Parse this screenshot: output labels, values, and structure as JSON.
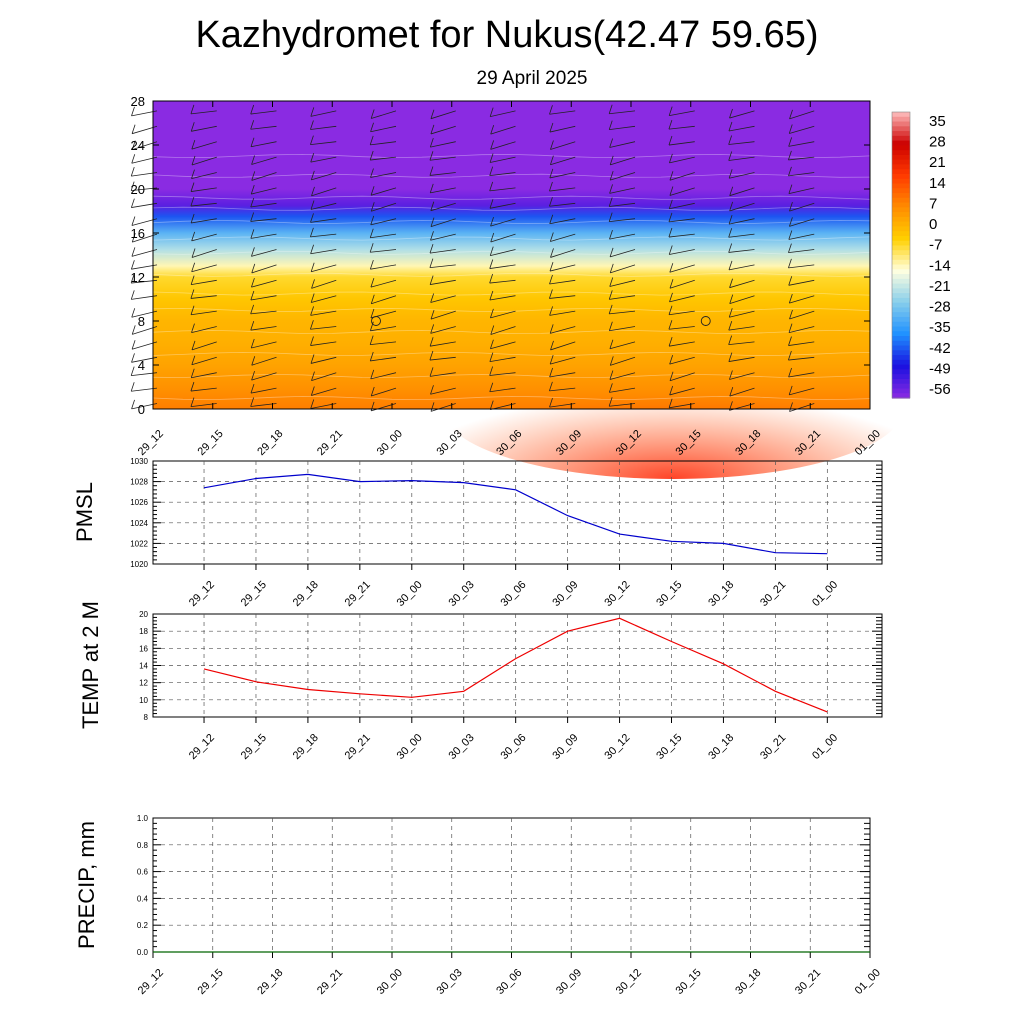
{
  "title": "Kazhydromet for Nukus(42.47 59.65)",
  "subtitle": "29 April 2025",
  "time_labels": [
    "29_12",
    "29_15",
    "29_18",
    "29_21",
    "30_00",
    "30_03",
    "30_06",
    "30_09",
    "30_12",
    "30_15",
    "30_18",
    "30_21",
    "01_00"
  ],
  "chart_data": [
    {
      "type": "heatmap",
      "name": "cross-section",
      "x": [
        "29_12",
        "29_15",
        "29_18",
        "29_21",
        "30_00",
        "30_03",
        "30_06",
        "30_09",
        "30_12",
        "30_15",
        "30_18",
        "30_21",
        "01_00"
      ],
      "ylim": [
        0,
        28
      ],
      "yticks": [
        0,
        4,
        8,
        12,
        16,
        20,
        24,
        28
      ],
      "colorbar_labels": [
        "35",
        "28",
        "21",
        "14",
        "7",
        "0",
        "-7",
        "-14",
        "-21",
        "-28",
        "-35",
        "-42",
        "-49",
        "-56"
      ],
      "colorbar_range": [
        -63,
        42
      ],
      "bands": [
        {
          "z": 0,
          "value": 9
        },
        {
          "z": 2,
          "value": 6
        },
        {
          "z": 4,
          "value": 3
        },
        {
          "z": 6,
          "value": 1
        },
        {
          "z": 8,
          "value": 0
        },
        {
          "z": 10,
          "value": -3
        },
        {
          "z": 12,
          "value": -7
        },
        {
          "z": 13,
          "value": -14
        },
        {
          "z": 14.5,
          "value": -24
        },
        {
          "z": 16,
          "value": -33
        },
        {
          "z": 17.5,
          "value": -45
        },
        {
          "z": 18.5,
          "value": -58
        },
        {
          "z": 20,
          "value": -63
        },
        {
          "z": 28,
          "value": -63
        }
      ],
      "colors": [
        "#8a2be2",
        "#1a10e0",
        "#1e90ff",
        "#87ceeb",
        "#ffffe0",
        "#ffd000",
        "#ff8c00",
        "#ff3a00",
        "#cc0000",
        "#ffc0c0"
      ]
    },
    {
      "type": "line",
      "name": "pmsl",
      "ylabel": "PMSL",
      "x": [
        "29_12",
        "29_15",
        "29_18",
        "29_21",
        "30_00",
        "30_03",
        "30_06",
        "30_09",
        "30_12",
        "30_15",
        "30_18",
        "30_21",
        "01_00"
      ],
      "series": [
        {
          "values": [
            1027.4,
            1028.3,
            1028.7,
            1028.0,
            1028.1,
            1027.9,
            1027.2,
            1024.7,
            1022.9,
            1022.2,
            1022.0,
            1021.1,
            1021.0
          ]
        }
      ],
      "ylim": [
        1020,
        1030
      ],
      "yticks": [
        1020,
        1022,
        1024,
        1026,
        1028,
        1030
      ],
      "color": "#0000cc"
    },
    {
      "type": "line",
      "name": "temp2m",
      "ylabel": "TEMP at 2 M",
      "x": [
        "29_12",
        "29_15",
        "29_18",
        "29_21",
        "30_00",
        "30_03",
        "30_06",
        "30_09",
        "30_12",
        "30_15",
        "30_18",
        "30_21",
        "01_00"
      ],
      "series": [
        {
          "values": [
            13.6,
            12.1,
            11.2,
            10.7,
            10.3,
            11.0,
            14.8,
            18.0,
            19.5,
            16.8,
            14.2,
            11.0,
            8.6
          ]
        }
      ],
      "ylim": [
        8,
        20
      ],
      "yticks": [
        8,
        10,
        12,
        14,
        16,
        18,
        20
      ],
      "color": "#ee0000"
    },
    {
      "type": "line",
      "name": "precip",
      "ylabel": "PRECIP, mm",
      "x": [
        "29_12",
        "29_15",
        "29_18",
        "29_21",
        "30_00",
        "30_03",
        "30_06",
        "30_09",
        "30_12",
        "30_15",
        "30_18",
        "30_21",
        "01_00"
      ],
      "series": [
        {
          "values": [
            0,
            0,
            0,
            0,
            0,
            0,
            0,
            0,
            0,
            0,
            0,
            0,
            0
          ]
        }
      ],
      "ylim": [
        0,
        1
      ],
      "yticks": [
        "0.0",
        "0.2",
        "0.4",
        "0.6",
        "0.8",
        "1.0"
      ],
      "color": "#006400"
    }
  ]
}
